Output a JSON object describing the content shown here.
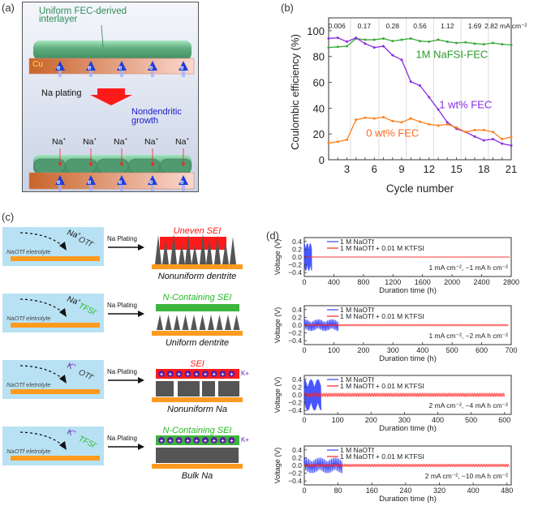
{
  "panels": {
    "a": {
      "label": "(a)",
      "interlayer_text": "Uniform FEC-derived interlayer",
      "interlayer_line1": "Uniform FEC-derived",
      "interlayer_line2": "interlayer",
      "cu_label": "Cu",
      "electron_label": "e-",
      "na_plating": "Na plating",
      "growth_line1": "Nondendritic",
      "growth_line2": "growth",
      "na_ion": "Na+",
      "colors": {
        "green": "#2e8b57",
        "blue": "#1a1acc",
        "arrow": "#ff1a1a",
        "cu": "#c8642a"
      }
    },
    "b": {
      "label": "(b)"
    },
    "c": {
      "label": "(c)",
      "rows": [
        {
          "cation": "Na",
          "anion": "OTf",
          "anion_color": "#333333",
          "electrolyte": "NaOTf eletrolyte",
          "arrow": "Na Plating",
          "sei_label": "Uneven SEI",
          "sei_color": "#ff1a1a",
          "result": "Nonuniform dentrite",
          "type": "uneven-dendrite"
        },
        {
          "cation": "Na",
          "anion": "TFSI",
          "anion_color": "#22bb22",
          "electrolyte": "NaOTf eletrolyte",
          "arrow": "Na Plating",
          "sei_label": "N-Containing SEI",
          "sei_color": "#22bb22",
          "result": "Uniform dentrite",
          "type": "uniform-dendrite"
        },
        {
          "cation": "K",
          "anion": "OTf",
          "anion_color": "#333333",
          "electrolyte": "NaOTf eletrolyte",
          "arrow": "Na Plating",
          "sei_label": "SEI",
          "sei_color": "#ff1a1a",
          "result": "Nonuniform Na",
          "type": "nonuniform-na",
          "k_label": "K+"
        },
        {
          "cation": "K",
          "anion": "TFSI",
          "anion_color": "#22bb22",
          "electrolyte": "NaOTf eletrolyte",
          "arrow": "Na Plating",
          "sei_label": "N-Containing SEI",
          "sei_color": "#22bb22",
          "result": "Bulk Na",
          "type": "bulk-na",
          "k_label": "K+"
        }
      ]
    },
    "d": {
      "label": "(d)"
    }
  },
  "chart_data": [
    {
      "type": "line",
      "panel": "b",
      "title": "",
      "xlabel": "Cycle number",
      "ylabel": "Coulombic efficiency (%)",
      "xlim": [
        1,
        21
      ],
      "ylim": [
        0,
        110
      ],
      "xticks": [
        3,
        6,
        9,
        12,
        15,
        18,
        21
      ],
      "yticks": [
        0,
        20,
        40,
        60,
        80,
        100
      ],
      "grid": "vertical lines at current-density changes",
      "current_density_dividers": [
        3.4,
        6.5,
        9.5,
        12.5,
        15.5,
        18.5
      ],
      "current_density_labels": [
        "0.006",
        "0.17",
        "0.28",
        "0.56",
        "1.12",
        "1.69",
        "2.82 mA cm⁻²"
      ],
      "x": [
        1,
        2,
        3,
        4,
        5,
        6,
        7,
        8,
        9,
        10,
        11,
        12,
        13,
        14,
        15,
        16,
        17,
        18,
        19,
        20,
        21
      ],
      "series": [
        {
          "name": "1M NaFSI-FEC",
          "color": "#3aa83a",
          "values": [
            87,
            87.5,
            88,
            94,
            93,
            93,
            94,
            92,
            93,
            94,
            92,
            91.5,
            93,
            91.5,
            90.5,
            91,
            90,
            89.5,
            90.5,
            89.5,
            89
          ]
        },
        {
          "name": "1 wt% FEC",
          "color": "#8a2be2",
          "values": [
            94,
            94.5,
            91.5,
            94.5,
            90,
            87,
            88,
            81,
            77.5,
            60.5,
            57.5,
            48.5,
            39,
            29,
            24,
            21.5,
            18,
            15,
            16,
            12.5,
            11
          ]
        },
        {
          "name": "0 wt% FEC",
          "color": "#ff7f1a",
          "values": [
            13,
            14,
            15.5,
            31,
            32.5,
            32,
            33,
            30,
            29,
            32,
            29.5,
            27.5,
            26.5,
            27.5,
            25,
            21.5,
            23,
            23,
            21.5,
            16,
            17.5
          ]
        }
      ]
    },
    {
      "type": "line",
      "panel": "d1",
      "xlabel": "Duration time (h)",
      "ylabel": "Voltage (V)",
      "xlim": [
        0,
        2800
      ],
      "ylim": [
        -0.5,
        0.5
      ],
      "xticks": [
        0,
        400,
        800,
        1200,
        1600,
        2000,
        2400,
        2800
      ],
      "yticks": [
        -0.4,
        -0.2,
        0.0,
        0.2,
        0.4
      ],
      "condition": "1 mA cm⁻², −1 mA h cm⁻²",
      "series": [
        {
          "name": "1 M NaOTf",
          "color": "#3344ff",
          "end_h": 100,
          "amplitude": 0.35
        },
        {
          "name": "1 M NaOTf + 0.01 M KTFSI",
          "color": "#ff2222",
          "end_h": 2780,
          "amplitude": 0.01
        }
      ]
    },
    {
      "type": "line",
      "panel": "d2",
      "xlabel": "Duration time (h)",
      "ylabel": "Voltage (V)",
      "xlim": [
        0,
        700
      ],
      "ylim": [
        -0.5,
        0.5
      ],
      "xticks": [
        0,
        100,
        200,
        300,
        400,
        500,
        600,
        700
      ],
      "yticks": [
        -0.4,
        -0.2,
        0.0,
        0.2,
        0.4
      ],
      "condition": "1 mA cm⁻², −2 mA h cm⁻²",
      "series": [
        {
          "name": "1 M NaOTf",
          "color": "#3344ff",
          "end_h": 115,
          "amplitude": 0.15
        },
        {
          "name": "1 M NaOTf + 0.01 M KTFSI",
          "color": "#ff2222",
          "end_h": 690,
          "amplitude": 0.02
        }
      ]
    },
    {
      "type": "line",
      "panel": "d3",
      "xlabel": "Duration time (h)",
      "ylabel": "Voltage (V)",
      "xlim": [
        0,
        620
      ],
      "ylim": [
        -0.5,
        0.5
      ],
      "xticks": [
        0,
        100,
        200,
        300,
        400,
        500,
        600
      ],
      "yticks": [
        -0.4,
        -0.2,
        0.0,
        0.2,
        0.4
      ],
      "condition": "2 mA cm⁻², −4 mA h cm⁻²",
      "series": [
        {
          "name": "1 M NaOTf",
          "color": "#3344ff",
          "end_h": 50,
          "amplitude": 0.4
        },
        {
          "name": "1 M NaOTf + 0.01 M KTFSI",
          "color": "#ff2222",
          "end_h": 600,
          "amplitude": 0.05
        }
      ]
    },
    {
      "type": "line",
      "panel": "d4",
      "xlabel": "Duration time (h)",
      "ylabel": "Voltage (V)",
      "xlim": [
        0,
        490
      ],
      "ylim": [
        -0.5,
        0.5
      ],
      "xticks": [
        0,
        80,
        160,
        240,
        320,
        400,
        480
      ],
      "yticks": [
        -0.4,
        -0.2,
        0.0,
        0.2,
        0.4
      ],
      "condition": "2 mA cm⁻², −10 mA h cm⁻²",
      "series": [
        {
          "name": "1 M NaOTf",
          "color": "#3344ff",
          "end_h": 90,
          "amplitude": 0.2
        },
        {
          "name": "1 M NaOTf + 0.01 M KTFSI",
          "color": "#ff2222",
          "end_h": 485,
          "amplitude": 0.04
        }
      ]
    }
  ]
}
